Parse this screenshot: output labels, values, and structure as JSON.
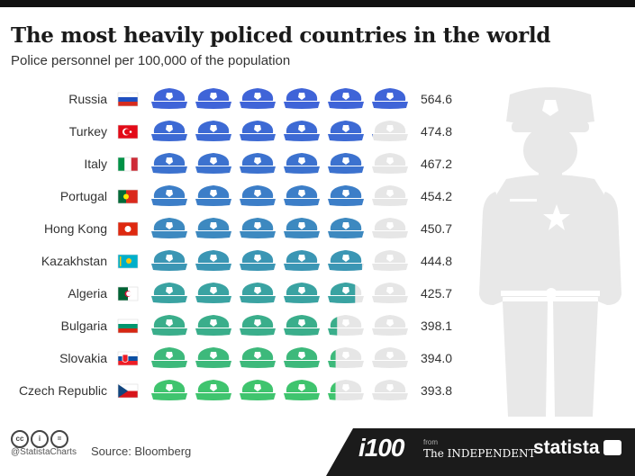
{
  "header": {
    "title": "The most heavily policed countries in the world",
    "subtitle": "Police personnel per 100,000 of the population"
  },
  "footer": {
    "handle": "@StatistaCharts",
    "source": "Source: Bloomberg",
    "i100_label": "i100",
    "independent_from": "from",
    "independent_label": "The INDEPENDENT",
    "statista_label": "statista"
  },
  "chart_data": {
    "type": "bar",
    "title": "The most heavily policed countries in the world",
    "subtitle": "Police personnel per 100,000 of the population",
    "categories": [
      "Russia",
      "Turkey",
      "Italy",
      "Portugal",
      "Hong Kong",
      "Kazakhstan",
      "Algeria",
      "Bulgaria",
      "Slovakia",
      "Czech Republic"
    ],
    "values": [
      564.6,
      474.8,
      467.2,
      454.2,
      450.7,
      444.8,
      425.7,
      398.1,
      394.0,
      393.8
    ],
    "value_labels": [
      "564.6",
      "474.8",
      "467.2",
      "454.2",
      "450.7",
      "444.8",
      "425.7",
      "398.1",
      "394.0",
      "393.8"
    ],
    "icon_unit": 100,
    "icon_count": 6,
    "icon": "police-cap-icon",
    "colors": [
      "#3f64d8",
      "#3d6ad4",
      "#3c72cf",
      "#3c7ec8",
      "#3d89c0",
      "#3b96b4",
      "#3aa3a2",
      "#3aae8b",
      "#3db97b",
      "#3fc46e"
    ],
    "empty_color": "#e6e6e6",
    "flags": [
      "russia-flag",
      "turkey-flag",
      "italy-flag",
      "portugal-flag",
      "hong-kong-flag",
      "kazakhstan-flag",
      "algeria-flag",
      "bulgaria-flag",
      "slovakia-flag",
      "czech-republic-flag"
    ]
  }
}
